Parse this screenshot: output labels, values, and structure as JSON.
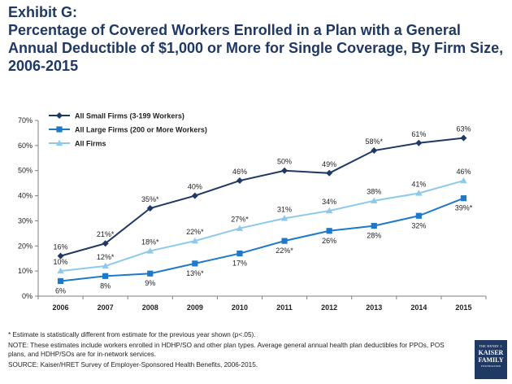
{
  "header": {
    "exhibit": "Exhibit G:",
    "title": "Percentage of Covered Workers Enrolled in a Plan with a General Annual Deductible of $1,000 or More for Single Coverage, By Firm Size, 2006-2015"
  },
  "chart_data": {
    "type": "line",
    "categories": [
      "2006",
      "2007",
      "2008",
      "2009",
      "2010",
      "2011",
      "2012",
      "2013",
      "2014",
      "2015"
    ],
    "ylim": [
      0,
      70
    ],
    "yticks": [
      "0%",
      "10%",
      "20%",
      "30%",
      "40%",
      "50%",
      "60%",
      "70%"
    ],
    "ytick_values": [
      0,
      10,
      20,
      30,
      40,
      50,
      60,
      70
    ],
    "legend_position": "top-left",
    "series": [
      {
        "name": "All Small Firms (3-199 Workers)",
        "color": "#1f3864",
        "marker": "diamond",
        "values": [
          16,
          21,
          35,
          40,
          46,
          50,
          49,
          58,
          61,
          63
        ],
        "labels": [
          "16%",
          "21%*",
          "35%*",
          "40%",
          "46%",
          "50%",
          "49%",
          "58%*",
          "61%",
          "63%"
        ],
        "label_side": "above"
      },
      {
        "name": "All Large Firms (200 or More Workers)",
        "color": "#1f78c8",
        "marker": "square",
        "values": [
          6,
          8,
          9,
          13,
          17,
          22,
          26,
          28,
          32,
          39
        ],
        "labels": [
          "6%",
          "8%",
          "9%",
          "13%*",
          "17%",
          "22%*",
          "26%",
          "28%",
          "32%",
          "39%*"
        ],
        "label_side": "below"
      },
      {
        "name": "All Firms",
        "color": "#8ec9ec",
        "marker": "triangle",
        "values": [
          10,
          12,
          18,
          22,
          27,
          31,
          34,
          38,
          41,
          46
        ],
        "labels": [
          "10%",
          "12%*",
          "18%*",
          "22%*",
          "27%*",
          "31%",
          "34%",
          "38%",
          "41%",
          "46%"
        ],
        "label_side": "above"
      }
    ]
  },
  "notes": {
    "asterisk": "* Estimate is statistically different from estimate for the previous year shown (p<.05).",
    "note": "NOTE: These estimates include workers enrolled in HDHP/SO and other plan types. Average general annual health plan deductibles for PPOs, POS plans, and HDHP/SOs are for in-network services.",
    "source": "SOURCE: Kaiser/HRET Survey of Employer-Sponsored Health Benefits, 2006-2015."
  },
  "logo": {
    "line1": "THE HENRY J.",
    "line2": "KAISER FAMILY",
    "line3": "FOUNDATION"
  }
}
